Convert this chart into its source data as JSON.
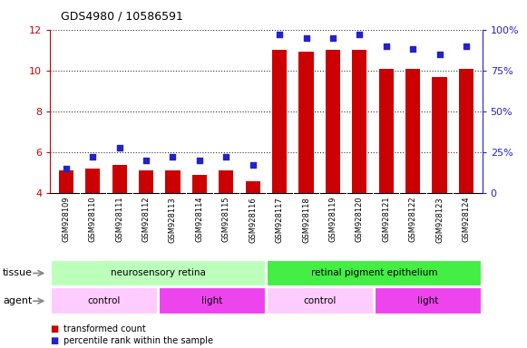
{
  "title": "GDS4980 / 10586591",
  "samples": [
    "GSM928109",
    "GSM928110",
    "GSM928111",
    "GSM928112",
    "GSM928113",
    "GSM928114",
    "GSM928115",
    "GSM928116",
    "GSM928117",
    "GSM928118",
    "GSM928119",
    "GSM928120",
    "GSM928121",
    "GSM928122",
    "GSM928123",
    "GSM928124"
  ],
  "bar_values": [
    5.1,
    5.2,
    5.4,
    5.1,
    5.1,
    4.9,
    5.1,
    4.6,
    11.0,
    10.9,
    11.0,
    11.0,
    10.1,
    10.1,
    9.7,
    10.1
  ],
  "dot_values": [
    15,
    22,
    28,
    20,
    22,
    20,
    22,
    17,
    97,
    95,
    95,
    97,
    90,
    88,
    85,
    90
  ],
  "ylim_left": [
    4,
    12
  ],
  "ylim_right": [
    0,
    100
  ],
  "yticks_left": [
    4,
    6,
    8,
    10,
    12
  ],
  "yticks_right": [
    0,
    25,
    50,
    75,
    100
  ],
  "bar_color": "#cc0000",
  "dot_color": "#2222cc",
  "tissue_groups": [
    {
      "label": "neurosensory retina",
      "start": 0,
      "end": 8,
      "color": "#bbffbb"
    },
    {
      "label": "retinal pigment epithelium",
      "start": 8,
      "end": 16,
      "color": "#44ee44"
    }
  ],
  "agent_groups": [
    {
      "label": "control",
      "start": 0,
      "end": 4,
      "color": "#ffccff"
    },
    {
      "label": "light",
      "start": 4,
      "end": 8,
      "color": "#ee44ee"
    },
    {
      "label": "control",
      "start": 8,
      "end": 12,
      "color": "#ffccff"
    },
    {
      "label": "light",
      "start": 12,
      "end": 16,
      "color": "#ee44ee"
    }
  ],
  "legend_bar_label": "transformed count",
  "legend_dot_label": "percentile rank within the sample",
  "tissue_label": "tissue",
  "agent_label": "agent",
  "left_axis_color": "#cc0000",
  "right_axis_color": "#2222cc",
  "grid_color": "#333333",
  "bg_color": "#cccccc",
  "spine_color": "#000000"
}
